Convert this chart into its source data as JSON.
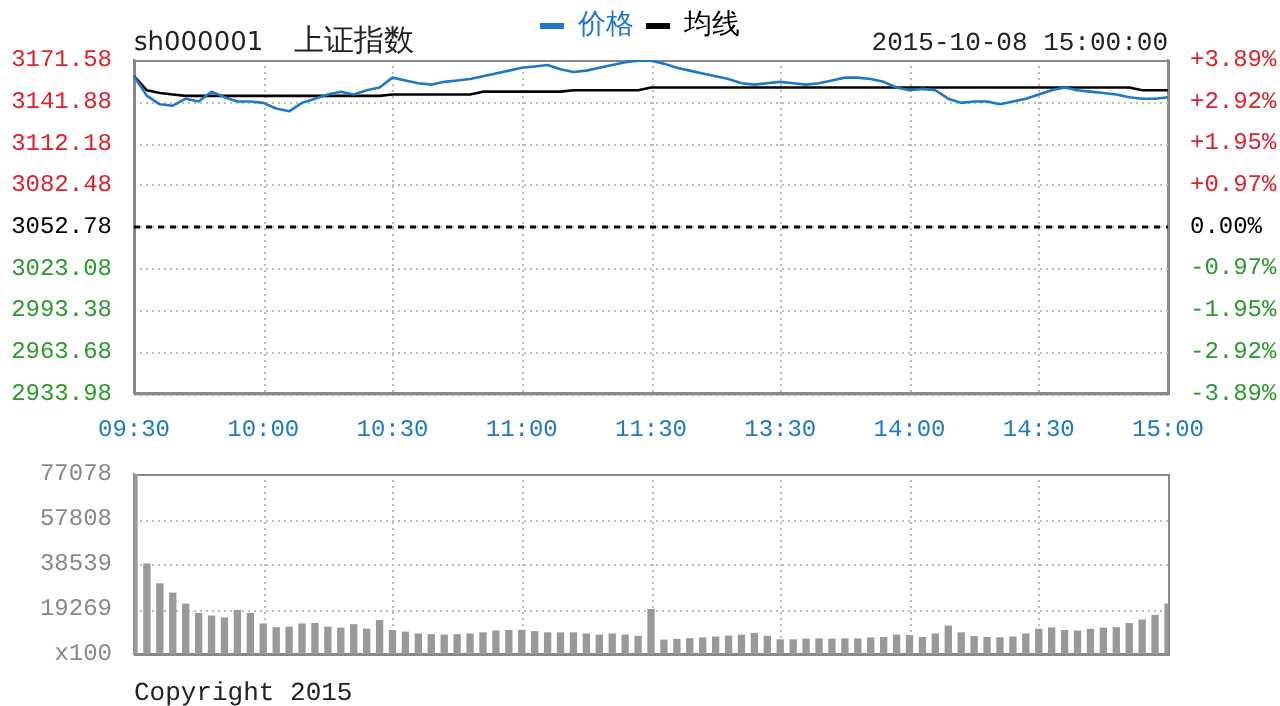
{
  "chart_data": [
    {
      "type": "line",
      "title": "sh000001",
      "subtitle": "上证指数",
      "annotations": [
        "2015-10-08 15:00:00"
      ],
      "categories": [
        "09:30",
        null,
        null,
        null,
        null,
        null,
        null,
        null,
        null,
        null,
        "10:00",
        null,
        null,
        null,
        null,
        null,
        null,
        null,
        null,
        null,
        "10:30",
        null,
        null,
        null,
        null,
        null,
        null,
        null,
        null,
        null,
        "11:00",
        null,
        null,
        null,
        null,
        null,
        null,
        null,
        null,
        null,
        "11:30",
        null,
        null,
        null,
        null,
        null,
        null,
        null,
        null,
        null,
        "13:30",
        null,
        null,
        null,
        null,
        null,
        null,
        null,
        null,
        null,
        "14:00",
        null,
        null,
        null,
        null,
        null,
        null,
        null,
        null,
        null,
        "14:30",
        null,
        null,
        null,
        null,
        null,
        null,
        null,
        null,
        null,
        "15:00"
      ],
      "series": [
        {
          "name": "价格",
          "color": "#1e78c8",
          "values": [
            3160,
            3146,
            3140,
            3139,
            3144,
            3142,
            3149,
            3145,
            3142,
            3142,
            3141,
            3137,
            3135,
            3141,
            3144,
            3147,
            3149,
            3147,
            3150,
            3152,
            3159,
            3157,
            3155,
            3154,
            3156,
            3157,
            3158,
            3160,
            3162,
            3164,
            3166,
            3167,
            3168,
            3165,
            3163,
            3164,
            3166,
            3168,
            3170,
            3171,
            3171,
            3169,
            3166,
            3164,
            3162,
            3160,
            3158,
            3155,
            3154,
            3155,
            3156,
            3155,
            3154,
            3155,
            3157,
            3159,
            3159,
            3158,
            3156,
            3152,
            3150,
            3151,
            3150,
            3144,
            3141,
            3142,
            3142,
            3140,
            3142,
            3144,
            3147,
            3150,
            3152,
            3150,
            3149,
            3148,
            3147,
            3145,
            3144,
            3144,
            3145
          ]
        },
        {
          "name": "均线",
          "color": "#000000",
          "values": [
            3160,
            3150,
            3148,
            3147,
            3146,
            3146,
            3146,
            3146,
            3146,
            3146,
            3146,
            3146,
            3146,
            3146,
            3146,
            3146,
            3146,
            3146,
            3146,
            3146,
            3147,
            3147,
            3147,
            3147,
            3147,
            3147,
            3147,
            3149,
            3149,
            3149,
            3149,
            3149,
            3149,
            3149,
            3150,
            3150,
            3150,
            3150,
            3150,
            3150,
            3152,
            3152,
            3152,
            3152,
            3152,
            3152,
            3152,
            3152,
            3152,
            3152,
            3152,
            3152,
            3152,
            3152,
            3152,
            3152,
            3152,
            3152,
            3152,
            3152,
            3152,
            3152,
            3152,
            3152,
            3152,
            3152,
            3152,
            3152,
            3152,
            3152,
            3152,
            3152,
            3152,
            3152,
            3152,
            3152,
            3152,
            3152,
            3150,
            3150,
            3150
          ]
        }
      ],
      "ylim": [
        2933.98,
        3171.58
      ],
      "yticks": [
        2933.98,
        2963.68,
        2993.38,
        3023.08,
        3052.78,
        3082.48,
        3112.18,
        3141.88,
        3171.58
      ],
      "y2lim": [
        -3.89,
        3.89
      ],
      "y2ticks": [
        {
          "value": -3.89,
          "label": "-3.89%"
        },
        {
          "value": -2.92,
          "label": "-2.92%"
        },
        {
          "value": -1.95,
          "label": "-1.95%"
        },
        {
          "value": -0.97,
          "label": "-0.97%"
        },
        {
          "value": 0,
          "label": "0.00%"
        },
        {
          "value": 0.97,
          "label": "+0.97%"
        },
        {
          "value": 1.95,
          "label": "+1.95%"
        },
        {
          "value": 2.92,
          "label": "+2.92%"
        },
        {
          "value": 3.89,
          "label": "+3.89%"
        }
      ],
      "ref_lines": [
        {
          "axis": "y",
          "value": 3052.78,
          "color": "#000000",
          "line_style": "dashed"
        }
      ],
      "grid": true,
      "legend": "top",
      "marker": "none",
      "line_style": "solid"
    },
    {
      "type": "bar",
      "annotations": [
        "Copyright 2015"
      ],
      "color": "#999999",
      "categories": [
        null,
        null,
        null,
        null,
        null,
        null,
        null,
        null,
        null,
        null,
        null,
        null,
        null,
        null,
        null,
        null,
        null,
        null,
        null,
        null,
        null,
        null,
        null,
        null,
        null,
        null,
        null,
        null,
        null,
        null,
        null,
        null,
        null,
        null,
        null,
        null,
        null,
        null,
        null,
        null,
        null,
        null,
        null,
        null,
        null,
        null,
        null,
        null,
        null,
        null,
        null,
        null,
        null,
        null,
        null,
        null,
        null,
        null,
        null,
        null,
        null,
        null,
        null,
        null,
        null,
        null,
        null,
        null,
        null,
        null,
        null,
        null,
        null,
        null,
        null,
        null,
        null,
        null,
        null,
        null,
        null
      ],
      "values": [
        77000,
        38500,
        30000,
        26000,
        21300,
        17300,
        16200,
        15400,
        18600,
        17300,
        12800,
        11200,
        11400,
        12800,
        13000,
        11400,
        11000,
        12500,
        10600,
        14300,
        10000,
        9300,
        8500,
        8200,
        8000,
        8200,
        8500,
        9000,
        9800,
        10000,
        10100,
        9500,
        9000,
        9000,
        9000,
        8500,
        8000,
        8500,
        8000,
        7500,
        19000,
        5900,
        6200,
        6500,
        6800,
        7200,
        7600,
        8000,
        8800,
        7500,
        6000,
        6000,
        6300,
        6400,
        6300,
        6400,
        6400,
        6800,
        7000,
        8000,
        7800,
        7000,
        8500,
        11900,
        9000,
        7400,
        7000,
        6900,
        7200,
        8500,
        10500,
        11100,
        10000,
        9800,
        10500,
        11000,
        11200,
        13000,
        14500,
        16500,
        21300
      ],
      "ylim": [
        0,
        77078
      ],
      "yticks": [
        {
          "value": 0,
          "label": "x100"
        },
        19269,
        38539,
        57808,
        77078
      ],
      "grid": true,
      "tick_labels": "y"
    }
  ]
}
